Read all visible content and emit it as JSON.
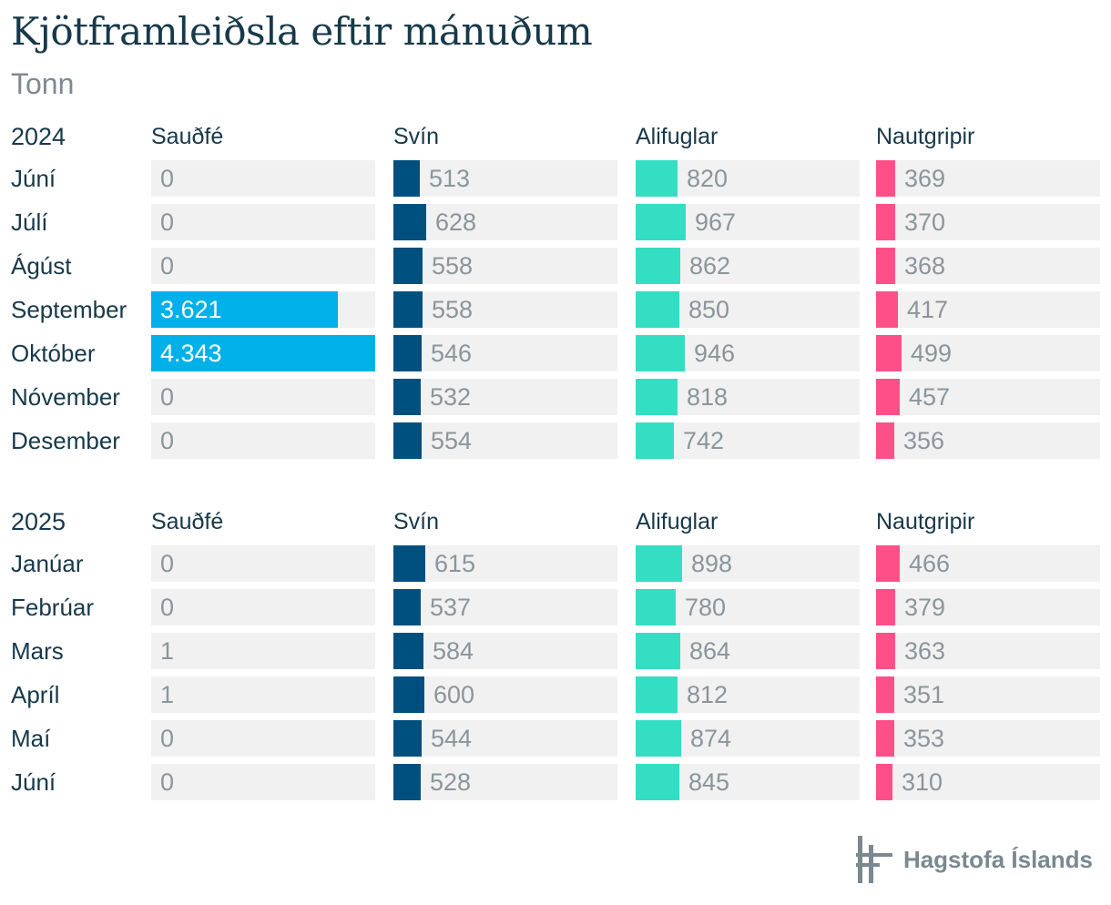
{
  "header": {
    "title": "Kjötframleiðsla eftir mánuðum",
    "subtitle": "Tonn"
  },
  "logo": {
    "text": "Hagstofa Íslands",
    "icon": "hagstofa-logo-icon"
  },
  "colors": {
    "Sauðfé": "#00b0e9",
    "Svín": "#00507f",
    "Alifuglar": "#33dec3",
    "Nautgripir": "#ff4f89",
    "cell_background": "#f1f1f1"
  },
  "chart_data": {
    "type": "bar",
    "orientation": "horizontal",
    "layout": "small-multiples",
    "title": "Kjötframleiðsla eftir mánuðum",
    "subtitle": "Tonn",
    "series_names": [
      "Sauðfé",
      "Svín",
      "Alifuglar",
      "Nautgripir"
    ],
    "xlim": {
      "Sauðfé": [
        0,
        4343
      ],
      "Svín": [
        0,
        4343
      ],
      "Alifuglar": [
        0,
        4343
      ],
      "Nautgripir": [
        0,
        4343
      ]
    },
    "groups": [
      {
        "year": "2024",
        "months": [
          "Júní",
          "Júlí",
          "Ágúst",
          "September",
          "Október",
          "Nóvember",
          "Desember"
        ],
        "values": {
          "Sauðfé": [
            0,
            0,
            0,
            3621,
            4343,
            0,
            0
          ],
          "Svín": [
            513,
            628,
            558,
            558,
            546,
            532,
            554
          ],
          "Alifuglar": [
            820,
            967,
            862,
            850,
            946,
            818,
            742
          ],
          "Nautgripir": [
            369,
            370,
            368,
            417,
            499,
            457,
            356
          ]
        },
        "labels": {
          "Sauðfé": [
            "0",
            "0",
            "0",
            "3.621",
            "4.343",
            "0",
            "0"
          ],
          "Svín": [
            "513",
            "628",
            "558",
            "558",
            "546",
            "532",
            "554"
          ],
          "Alifuglar": [
            "820",
            "967",
            "862",
            "850",
            "946",
            "818",
            "742"
          ],
          "Nautgripir": [
            "369",
            "370",
            "368",
            "417",
            "499",
            "457",
            "356"
          ]
        }
      },
      {
        "year": "2025",
        "months": [
          "Janúar",
          "Febrúar",
          "Mars",
          "Apríl",
          "Maí",
          "Júní"
        ],
        "values": {
          "Sauðfé": [
            0,
            0,
            1,
            1,
            0,
            0
          ],
          "Svín": [
            615,
            537,
            584,
            600,
            544,
            528
          ],
          "Alifuglar": [
            898,
            780,
            864,
            812,
            874,
            845
          ],
          "Nautgripir": [
            466,
            379,
            363,
            351,
            353,
            310
          ]
        },
        "labels": {
          "Sauðfé": [
            "0",
            "0",
            "1",
            "1",
            "0",
            "0"
          ],
          "Svín": [
            "615",
            "537",
            "584",
            "600",
            "544",
            "528"
          ],
          "Alifuglar": [
            "898",
            "780",
            "864",
            "812",
            "874",
            "845"
          ],
          "Nautgripir": [
            "466",
            "379",
            "363",
            "351",
            "353",
            "310"
          ]
        }
      }
    ]
  }
}
